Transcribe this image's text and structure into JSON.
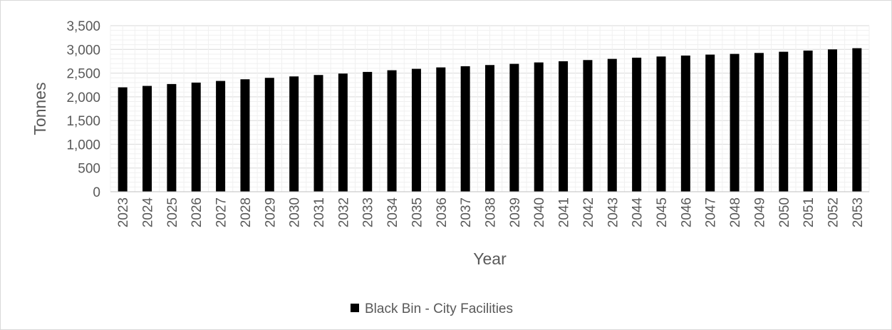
{
  "chart_data": {
    "type": "bar",
    "title": "",
    "xlabel": "Year",
    "ylabel": "Tonnes",
    "ylim": [
      0,
      3500
    ],
    "y_ticks": [
      "0",
      "500",
      "1,000",
      "1,500",
      "2,000",
      "2,500",
      "3,000",
      "3,500"
    ],
    "y_tick_values": [
      0,
      500,
      1000,
      1500,
      2000,
      2500,
      3000,
      3500
    ],
    "grid": true,
    "legend_position": "bottom",
    "categories": [
      "2023",
      "2024",
      "2025",
      "2026",
      "2027",
      "2028",
      "2029",
      "2030",
      "2031",
      "2032",
      "2033",
      "2034",
      "2035",
      "2036",
      "2037",
      "2038",
      "2039",
      "2040",
      "2041",
      "2042",
      "2043",
      "2044",
      "2045",
      "2046",
      "2047",
      "2048",
      "2049",
      "2050",
      "2051",
      "2052",
      "2053"
    ],
    "series": [
      {
        "name": "Black Bin - City Facilities",
        "color": "#000000",
        "values": [
          2200,
          2230,
          2270,
          2300,
          2335,
          2370,
          2400,
          2430,
          2460,
          2490,
          2525,
          2560,
          2590,
          2620,
          2645,
          2670,
          2695,
          2725,
          2750,
          2775,
          2800,
          2825,
          2850,
          2870,
          2890,
          2905,
          2925,
          2950,
          2975,
          3000,
          3025
        ]
      }
    ]
  }
}
